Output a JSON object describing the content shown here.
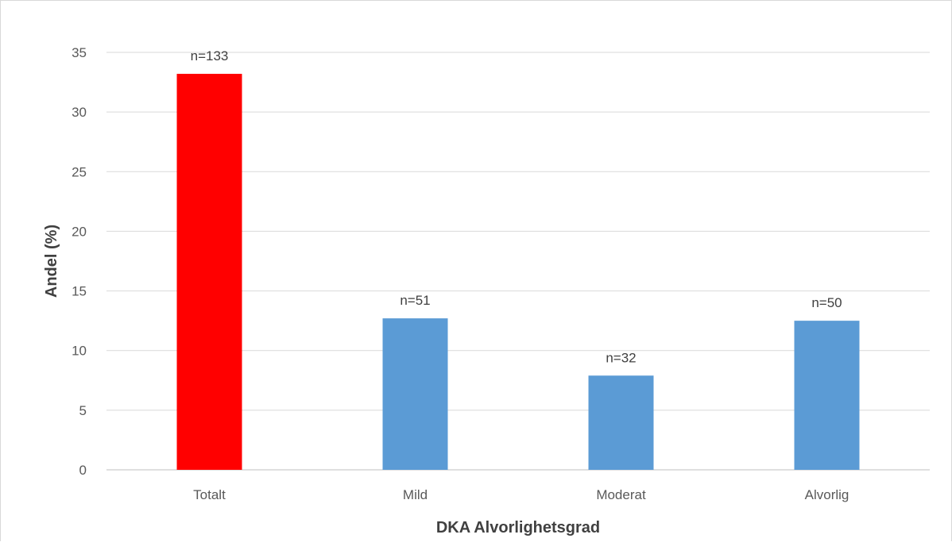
{
  "chart_data": {
    "type": "bar",
    "categories": [
      "Totalt",
      "Mild",
      "Moderat",
      "Alvorlig"
    ],
    "values": [
      33.2,
      12.7,
      7.9,
      12.5
    ],
    "data_labels": [
      "n=133",
      "n=51",
      "n=32",
      "n=50"
    ],
    "bar_colors": [
      "#ff0000",
      "#5b9bd5",
      "#5b9bd5",
      "#5b9bd5"
    ],
    "title": "",
    "xlabel": "DKA Alvorlighetsgrad",
    "ylabel": "Andel (%)",
    "ylim": [
      0,
      35
    ],
    "yticks": [
      0,
      5,
      10,
      15,
      20,
      25,
      30,
      35
    ],
    "grid": true,
    "legend": "none"
  }
}
